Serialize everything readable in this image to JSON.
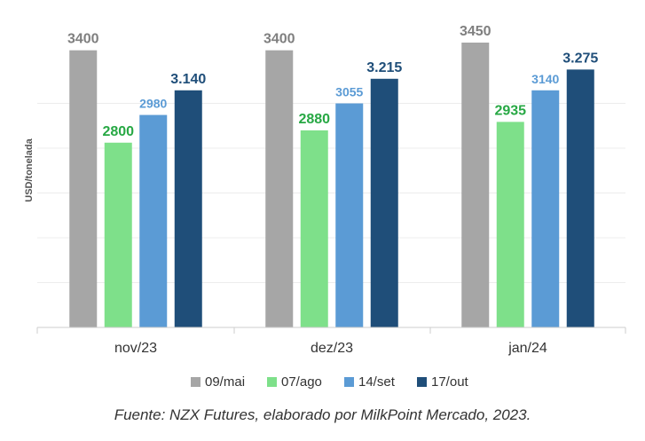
{
  "caption": "Fuente: NZX Futures, elaborado por MilkPoint Mercado, 2023.",
  "chart_data": {
    "type": "bar",
    "ylabel": "USD/tonelada",
    "ylim": [
      1600,
      3550
    ],
    "grid": true,
    "legend_position": "bottom",
    "categories": [
      "nov/23",
      "dez/23",
      "jan/24"
    ],
    "series": [
      {
        "name": "09/mai",
        "color": "#a6a6a6",
        "label_color": "#7f7f7f",
        "values": [
          3400,
          3400,
          3450
        ],
        "labels": [
          "3400",
          "3400",
          "3450"
        ]
      },
      {
        "name": "07/ago",
        "color": "#7ee08a",
        "label_color": "#27a844",
        "values": [
          2800,
          2880,
          2935
        ],
        "labels": [
          "2800",
          "2880",
          "2935"
        ]
      },
      {
        "name": "14/set",
        "color": "#5b9bd5",
        "label_color": "#5b9bd5",
        "values": [
          2980,
          3055,
          3140
        ],
        "labels": [
          "2980",
          "3055",
          "3140"
        ]
      },
      {
        "name": "17/out",
        "color": "#1f4e79",
        "label_color": "#1f4e79",
        "values": [
          3140,
          3215,
          3275
        ],
        "labels": [
          "3.140",
          "3.215",
          "3.275"
        ]
      }
    ]
  }
}
